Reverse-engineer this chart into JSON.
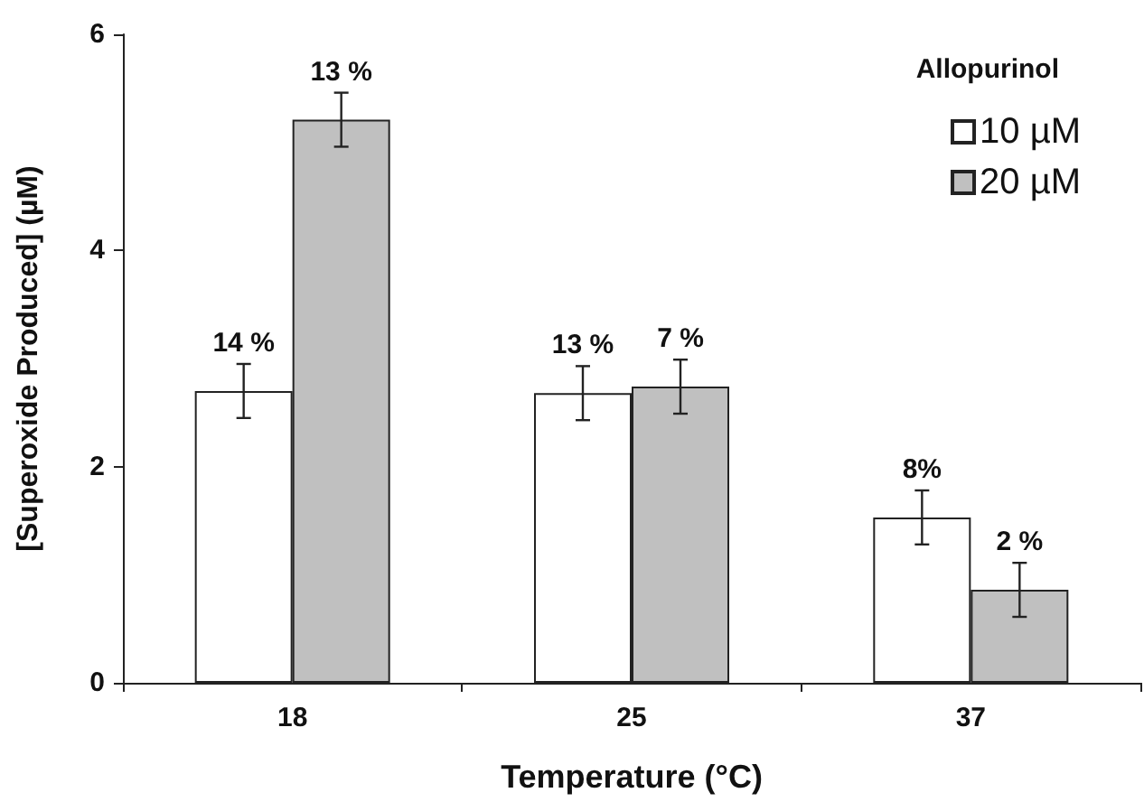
{
  "chart_data": {
    "type": "bar",
    "xlabel": "Temperature (°C)",
    "ylabel": "[Superoxide Produced] (µM)",
    "legend_title": "Allopurinol",
    "categories": [
      "18",
      "25",
      "37"
    ],
    "series": [
      {
        "name": "10 µM",
        "color": "#ffffff",
        "values": [
          2.7,
          2.68,
          1.53
        ],
        "errors": [
          0.25,
          0.25,
          0.25
        ]
      },
      {
        "name": "20 µM",
        "color": "#c0c0c0",
        "values": [
          5.21,
          2.74,
          0.86
        ],
        "errors": [
          0.25,
          0.25,
          0.25
        ]
      }
    ],
    "annotations": [
      {
        "text": "14 %",
        "x": "18",
        "y": 2.7
      },
      {
        "text": "13 %",
        "x": "18",
        "y": 5.21
      },
      {
        "text": "13 %",
        "x": "25",
        "y": 2.68
      },
      {
        "text": "7 %",
        "x": "25",
        "y": 2.74
      },
      {
        "text": "8%",
        "x": "37",
        "y": 1.53
      },
      {
        "text": "2 %",
        "x": "37",
        "y": 0.86
      }
    ],
    "ylim": [
      0,
      6
    ],
    "yticks": [
      0,
      2,
      4,
      6
    ],
    "grid": false,
    "legend": "top right"
  }
}
